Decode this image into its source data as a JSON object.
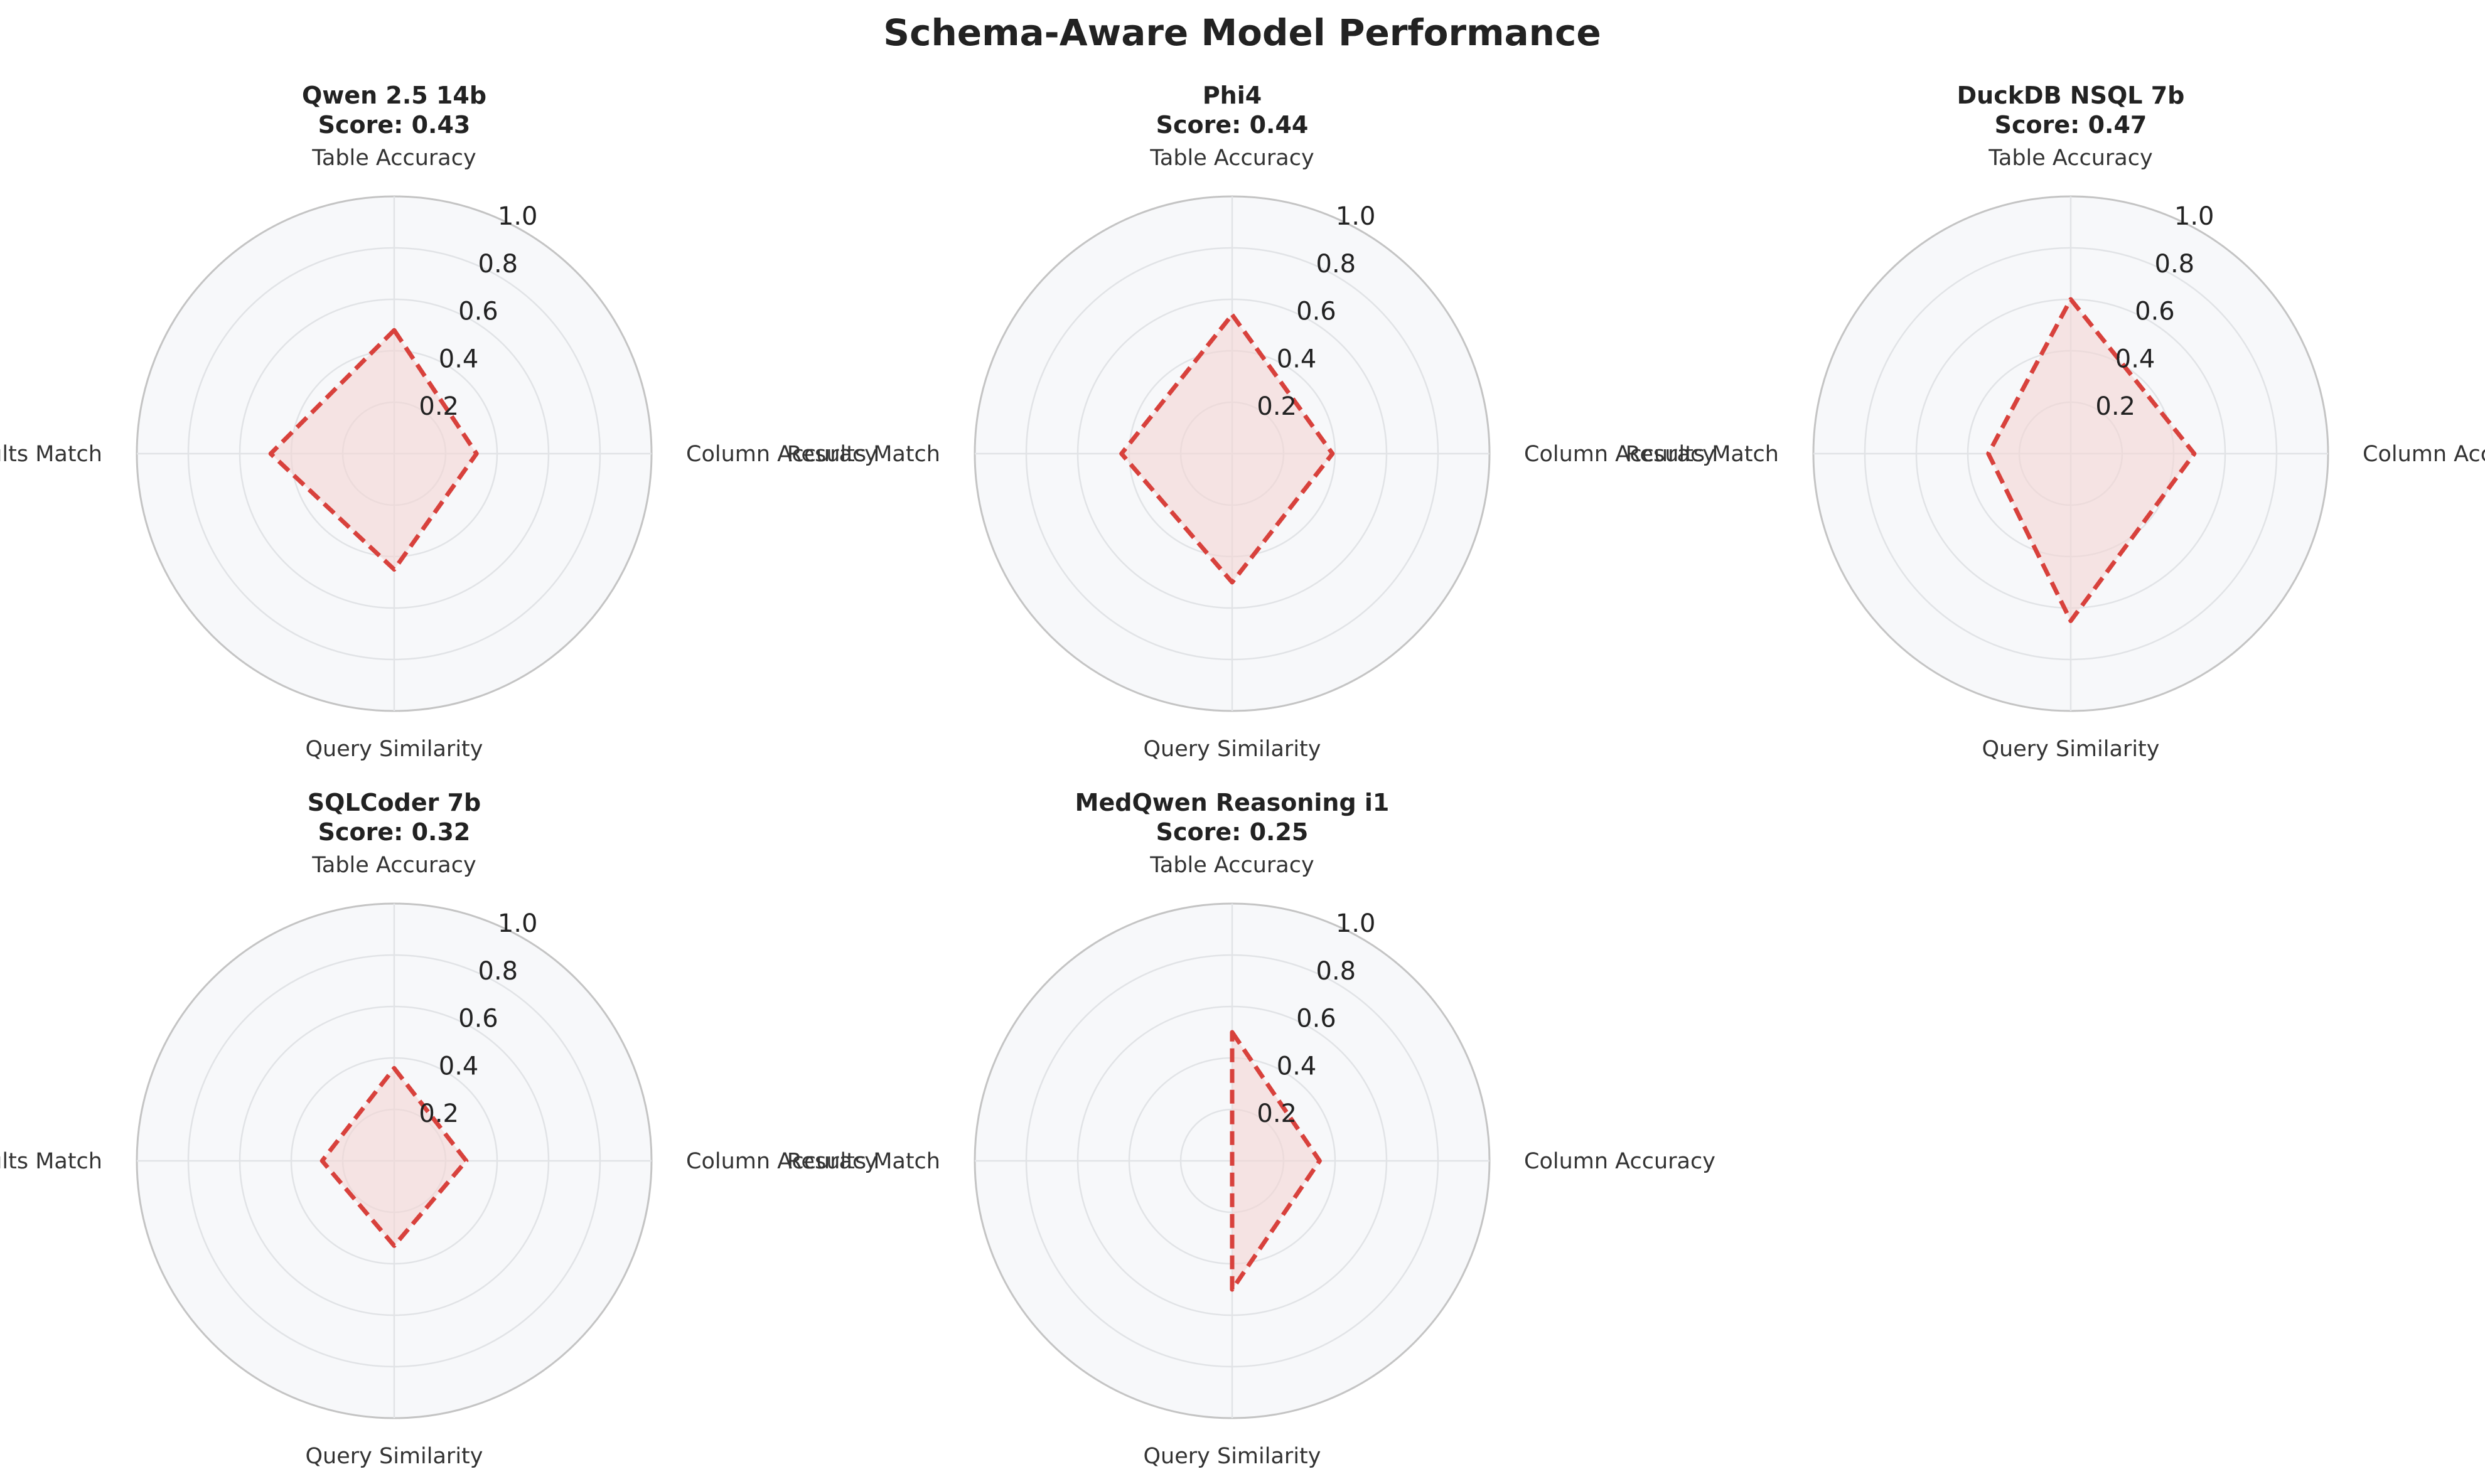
{
  "title": "Schema-Aware Model Performance",
  "colors": {
    "series_line": "#d8413c",
    "series_fill": "#f4d6d4",
    "panel_background": "#f7f8fa",
    "grid": "#e1e3e6",
    "outer_ring": "#c4c4c4"
  },
  "chart_data": [
    {
      "type": "radar",
      "name": "Qwen 2.5 14b",
      "score_label": "Score: 0.43",
      "axes": [
        "Table Accuracy",
        "Column Accuracy",
        "Query Similarity",
        "Results Match"
      ],
      "values": [
        0.48,
        0.32,
        0.45,
        0.48
      ],
      "rlim": [
        0,
        1.0
      ],
      "rticks": [
        "0.2",
        "0.4",
        "0.6",
        "0.8",
        "1.0"
      ],
      "line_style": "dashed",
      "grid": true
    },
    {
      "type": "radar",
      "name": "Phi4",
      "score_label": "Score: 0.44",
      "axes": [
        "Table Accuracy",
        "Column Accuracy",
        "Query Similarity",
        "Results Match"
      ],
      "values": [
        0.54,
        0.39,
        0.5,
        0.43
      ],
      "rlim": [
        0,
        1.0
      ],
      "rticks": [
        "0.2",
        "0.4",
        "0.6",
        "0.8",
        "1.0"
      ],
      "line_style": "dashed",
      "grid": true
    },
    {
      "type": "radar",
      "name": "DuckDB NSQL 7b",
      "score_label": "Score: 0.47",
      "axes": [
        "Table Accuracy",
        "Column Accuracy",
        "Query Similarity",
        "Results Match"
      ],
      "values": [
        0.6,
        0.48,
        0.65,
        0.32
      ],
      "rlim": [
        0,
        1.0
      ],
      "rticks": [
        "0.2",
        "0.4",
        "0.6",
        "0.8",
        "1.0"
      ],
      "line_style": "dashed",
      "grid": true
    },
    {
      "type": "radar",
      "name": "SQLCoder 7b",
      "score_label": "Score: 0.32",
      "axes": [
        "Table Accuracy",
        "Column Accuracy",
        "Query Similarity",
        "Results Match"
      ],
      "values": [
        0.36,
        0.28,
        0.33,
        0.28
      ],
      "rlim": [
        0,
        1.0
      ],
      "rticks": [
        "0.2",
        "0.4",
        "0.6",
        "0.8",
        "1.0"
      ],
      "line_style": "dashed",
      "grid": true
    },
    {
      "type": "radar",
      "name": "MedQwen Reasoning i1",
      "score_label": "Score: 0.25",
      "axes": [
        "Table Accuracy",
        "Column Accuracy",
        "Query Similarity",
        "Results Match"
      ],
      "values": [
        0.5,
        0.34,
        0.5,
        0.0
      ],
      "rlim": [
        0,
        1.0
      ],
      "rticks": [
        "0.2",
        "0.4",
        "0.6",
        "0.8",
        "1.0"
      ],
      "line_style": "dashed",
      "grid": true
    }
  ]
}
